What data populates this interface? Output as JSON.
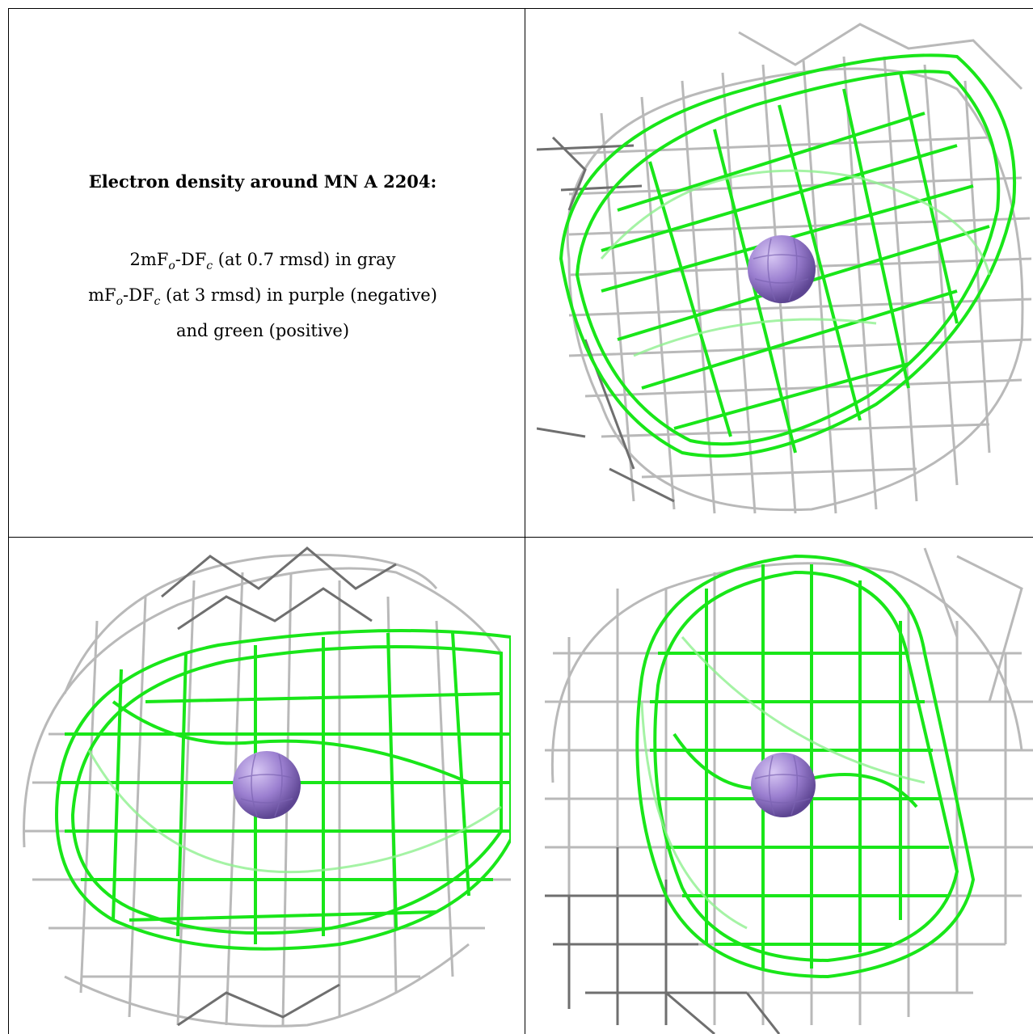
{
  "caption": {
    "title": "Electron density around MN A 2204:",
    "line1_prefix": "2mF",
    "line1_sub1": "o",
    "line1_mid": "-DF",
    "line1_sub2": "c",
    "line1_rest": " (at 0.7 rmsd) in gray",
    "line2_prefix": "mF",
    "line2_sub1": "o",
    "line2_mid": "-DF",
    "line2_sub2": "c",
    "line2_rest": " (at 3 rmsd) in purple (negative)",
    "line3": "and green (positive)"
  },
  "colors": {
    "gray_mesh": "#b9b9b9",
    "dark_mesh": "#6f6f6f",
    "green_mesh": "#19e619",
    "light_green": "#8ff08f",
    "atom": "#9b7fd0",
    "border": "#000000"
  },
  "panels": [
    {
      "name": "view-top-right",
      "atom_label": "MN"
    },
    {
      "name": "view-bottom-left",
      "atom_label": "MN"
    },
    {
      "name": "view-bottom-right",
      "atom_label": "MN"
    }
  ]
}
